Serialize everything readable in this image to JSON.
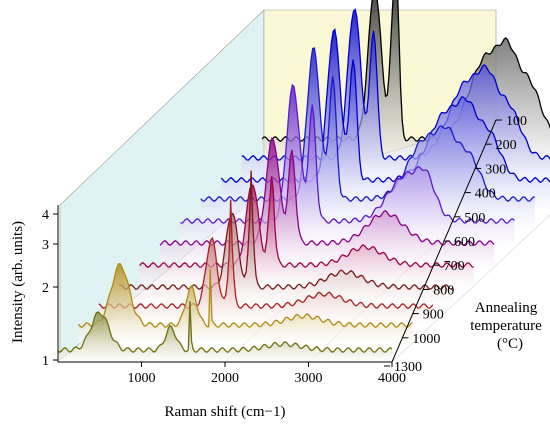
{
  "chart_data": {
    "type": "line",
    "xlabel": "Raman shift (cm−1)",
    "ylabel": "Intensity (arb. units)",
    "zlabel_lines": [
      "Annealing",
      "temperature",
      "(°C)"
    ],
    "x_ticks": [
      "1000",
      "2000",
      "3000",
      "4000"
    ],
    "y_ticks": [
      "1",
      "2",
      "3",
      "4"
    ],
    "z_ticks": [
      "100",
      "200",
      "300",
      "400",
      "500",
      "600",
      "700",
      "800",
      "900",
      "1000",
      "1300"
    ],
    "xlim": [
      0,
      4000
    ],
    "grid": true,
    "series": [
      {
        "temperature": "100",
        "color": "#000000",
        "peaks": [
          [
            1350,
            1.0,
            110
          ],
          [
            1580,
            0.85,
            60
          ],
          [
            1620,
            0.5,
            40
          ],
          [
            2700,
            0.55,
            300
          ],
          [
            2950,
            0.3,
            150
          ],
          [
            3200,
            0.35,
            200
          ]
        ],
        "base": 0.22
      },
      {
        "temperature": "200",
        "color": "#0000cc",
        "peaks": [
          [
            1350,
            1.0,
            110
          ],
          [
            1580,
            0.85,
            60
          ],
          [
            2700,
            0.5,
            300
          ],
          [
            2950,
            0.28,
            150
          ],
          [
            3200,
            0.32,
            200
          ]
        ],
        "base": 0.22
      },
      {
        "temperature": "300",
        "color": "#0000cc",
        "peaks": [
          [
            1350,
            1.0,
            110
          ],
          [
            1580,
            0.8,
            60
          ],
          [
            2700,
            0.45,
            300
          ],
          [
            2950,
            0.25,
            150
          ],
          [
            3200,
            0.3,
            200
          ]
        ],
        "base": 0.2
      },
      {
        "temperature": "400",
        "color": "#1a1acc",
        "peaks": [
          [
            1350,
            1.0,
            110
          ],
          [
            1580,
            0.8,
            60
          ],
          [
            2700,
            0.4,
            300
          ],
          [
            2950,
            0.22,
            150
          ],
          [
            3200,
            0.28,
            200
          ]
        ],
        "base": 0.2
      },
      {
        "temperature": "500",
        "color": "#5a1acc",
        "peaks": [
          [
            1350,
            0.9,
            110
          ],
          [
            1580,
            0.75,
            60
          ],
          [
            2700,
            0.3,
            300
          ],
          [
            2950,
            0.18,
            150
          ]
        ],
        "base": 0.18
      },
      {
        "temperature": "600",
        "color": "#8a0088",
        "peaks": [
          [
            1350,
            0.7,
            110
          ],
          [
            1580,
            0.6,
            60
          ],
          [
            2700,
            0.2,
            300
          ]
        ],
        "base": 0.16
      },
      {
        "temperature": "700",
        "color": "#a0004a",
        "peaks": [
          [
            1350,
            0.55,
            100
          ],
          [
            1580,
            0.5,
            50
          ],
          [
            1590,
            0.25,
            10
          ],
          [
            2700,
            0.12,
            300
          ]
        ],
        "base": 0.14
      },
      {
        "temperature": "800",
        "color": "#7a1a1a",
        "peaks": [
          [
            1350,
            0.5,
            100
          ],
          [
            1580,
            0.55,
            40
          ],
          [
            1585,
            0.35,
            8
          ],
          [
            2700,
            0.1,
            300
          ]
        ],
        "base": 0.12
      },
      {
        "temperature": "900",
        "color": "#aa2020",
        "peaks": [
          [
            1350,
            0.45,
            90
          ],
          [
            1580,
            0.45,
            40
          ],
          [
            1585,
            0.4,
            8
          ],
          [
            2700,
            0.08,
            300
          ]
        ],
        "base": 0.12
      },
      {
        "temperature": "1000",
        "color": "#b08a10",
        "peaks": [
          [
            500,
            0.4,
            150
          ],
          [
            1350,
            0.25,
            90
          ],
          [
            1585,
            0.55,
            8
          ],
          [
            2700,
            0.06,
            300
          ]
        ],
        "base": 0.12
      },
      {
        "temperature": "1300",
        "color": "#707010",
        "peaks": [
          [
            500,
            0.25,
            150
          ],
          [
            1350,
            0.15,
            90
          ],
          [
            1585,
            0.4,
            10
          ],
          [
            2700,
            0.04,
            300
          ]
        ],
        "base": 0.08
      }
    ]
  }
}
